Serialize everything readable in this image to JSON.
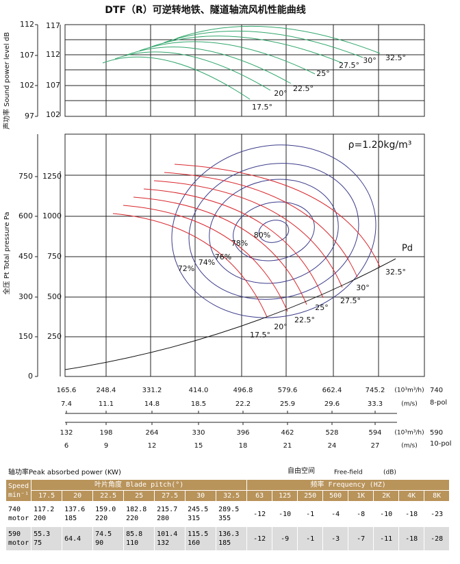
{
  "title": "DTF（R）可逆转地铁、隧道轴流风机性能曲线",
  "sound_chart": {
    "axis_label": "声功率 Sound power level dB",
    "outer_ticks": [
      "112",
      "107",
      "102",
      "97"
    ],
    "inner_ticks": [
      "117",
      "112",
      "107",
      "102"
    ],
    "pitch_labels": [
      "17.5°",
      "20°",
      "22.5°",
      "25°",
      "27.5°",
      "30°",
      "32.5°"
    ]
  },
  "pressure_chart": {
    "axis_label": "全压 Pt Total pressure Pa",
    "outer_ticks": [
      "750",
      "600",
      "450",
      "300",
      "150",
      "0"
    ],
    "inner_ticks": [
      "1250",
      "1000",
      "750",
      "500",
      "250"
    ],
    "density": "ρ=1.20kg/m³",
    "pd_label": "Pd",
    "efficiency_labels": [
      "72%",
      "74%",
      "76%",
      "78%",
      "80%"
    ],
    "pitch_labels": [
      "17.5°",
      "20°",
      "22.5°",
      "25°",
      "27.5°",
      "30°",
      "32.5°"
    ]
  },
  "flow_axes": [
    {
      "flow": [
        "165.6",
        "248.4",
        "331.2",
        "414.0",
        "496.8",
        "579.6",
        "662.4",
        "745.2"
      ],
      "flow_unit": "(10³m³/h)",
      "velocity": [
        "7.4",
        "11.1",
        "14.8",
        "18.5",
        "22.2",
        "25.9",
        "29.6",
        "33.3"
      ],
      "velocity_unit": "(m/s)",
      "speed": "740",
      "poles": "8-pol"
    },
    {
      "flow": [
        "132",
        "198",
        "264",
        "330",
        "396",
        "462",
        "528",
        "594"
      ],
      "flow_unit": "(10³m³/h)",
      "velocity": [
        "6",
        "9",
        "12",
        "15",
        "18",
        "21",
        "24",
        "27"
      ],
      "velocity_unit": "(m/s)",
      "speed": "590",
      "poles": "10-pol"
    }
  ],
  "table": {
    "power_caption": "轴功率Peak absorbed power (KW)",
    "noise_caption": "自由空间",
    "noise_caption_en": "Free-field",
    "noise_unit": "(dB)",
    "speed_header": [
      "Speed",
      "min⁻¹"
    ],
    "pitch_header": "叶片角度 Blade pitch(°)",
    "frequency_header": "频率  Frequency (HZ)",
    "pitches": [
      "17.5",
      "20",
      "22.5",
      "25",
      "27.5",
      "30",
      "32.5"
    ],
    "frequencies": [
      "63",
      "125",
      "250",
      "500",
      "1K",
      "2K",
      "4K",
      "8K"
    ],
    "rows": [
      {
        "speed": [
          "740",
          "motor"
        ],
        "power": [
          [
            "117.2",
            "200"
          ],
          [
            "137.6",
            "185"
          ],
          [
            "159.0",
            "220"
          ],
          [
            "182.8",
            "220"
          ],
          [
            "215.7",
            "280"
          ],
          [
            "245.5",
            "315"
          ],
          [
            "289.5",
            "355"
          ]
        ],
        "levels": [
          "-12",
          "-10",
          "-1",
          "-4",
          "-8",
          "-10",
          "-18",
          "-23"
        ]
      },
      {
        "speed": [
          "590",
          "motor"
        ],
        "power": [
          [
            "55.3",
            "75"
          ],
          [
            "64.4"
          ],
          [
            "74.5",
            "90"
          ],
          [
            "85.8",
            "110"
          ],
          [
            "101.4",
            "132"
          ],
          [
            "115.5",
            "160"
          ],
          [
            "136.3",
            "185"
          ]
        ],
        "levels": [
          "-12",
          "-9",
          "-1",
          "-3",
          "-7",
          "-11",
          "-18",
          "-28"
        ]
      }
    ]
  }
}
